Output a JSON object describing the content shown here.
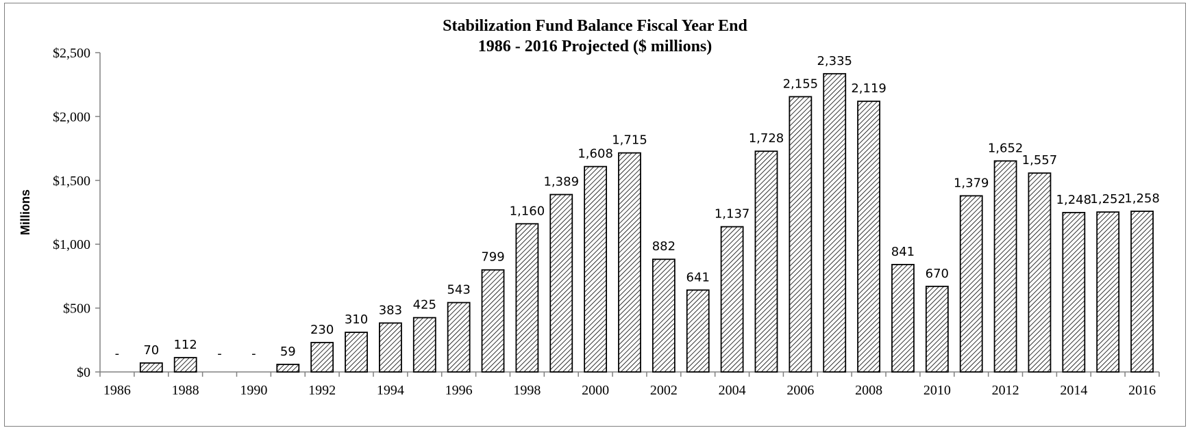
{
  "chart_data": {
    "type": "bar",
    "title": "Stabilization  Fund Balance Fiscal Year End",
    "subtitle": "1986 - 2016 Projected ($ millions)",
    "ylabel": "Millions",
    "xlabel": "",
    "ylim": [
      0,
      2500
    ],
    "yticks": [
      0,
      500,
      1000,
      1500,
      2000,
      2500
    ],
    "ytick_labels": [
      "$0",
      "$500",
      "$1,000",
      "$1,500",
      "$2,000",
      "$2,500"
    ],
    "categories": [
      "1986",
      "1987",
      "1988",
      "1989",
      "1990",
      "1991",
      "1992",
      "1993",
      "1994",
      "1995",
      "1996",
      "1997",
      "1998",
      "1999",
      "2000",
      "2001",
      "2002",
      "2003",
      "2004",
      "2005",
      "2006",
      "2007",
      "2008",
      "2009",
      "2010",
      "2011",
      "2012",
      "2013",
      "2014",
      "2015",
      "2016"
    ],
    "xtick_labels": [
      "1986",
      "",
      "1988",
      "",
      "1990",
      "",
      "1992",
      "",
      "1994",
      "",
      "1996",
      "",
      "1998",
      "",
      "2000",
      "",
      "2002",
      "",
      "2004",
      "",
      "2006",
      "",
      "2008",
      "",
      "2010",
      "",
      "2012",
      "",
      "2014",
      "",
      "2016"
    ],
    "values": [
      0,
      70,
      112,
      0,
      0,
      59,
      230,
      310,
      383,
      425,
      543,
      799,
      1160,
      1389,
      1608,
      1715,
      882,
      641,
      1137,
      1728,
      2155,
      2335,
      2119,
      841,
      670,
      1379,
      1652,
      1557,
      1248,
      1252,
      1258
    ],
    "data_labels": [
      "-",
      "70",
      "112",
      "-",
      "-",
      "59",
      "230",
      "310",
      "383",
      "425",
      "543",
      "799",
      "1,160",
      "1,389",
      "1,608",
      "1,715",
      "882",
      "641",
      "1,137",
      "1,728",
      "2,155",
      "2,335",
      "2,119",
      "841",
      "670",
      "1,379",
      "1,652",
      "1,557",
      "1,248",
      "1,252",
      "1,258"
    ],
    "grid": false,
    "bar_pattern": "diagonal-hatch",
    "colors": {
      "bar_fill": "#ffffff",
      "hatch": "#000000",
      "bar_stroke": "#000000",
      "axis": "#808080"
    }
  }
}
